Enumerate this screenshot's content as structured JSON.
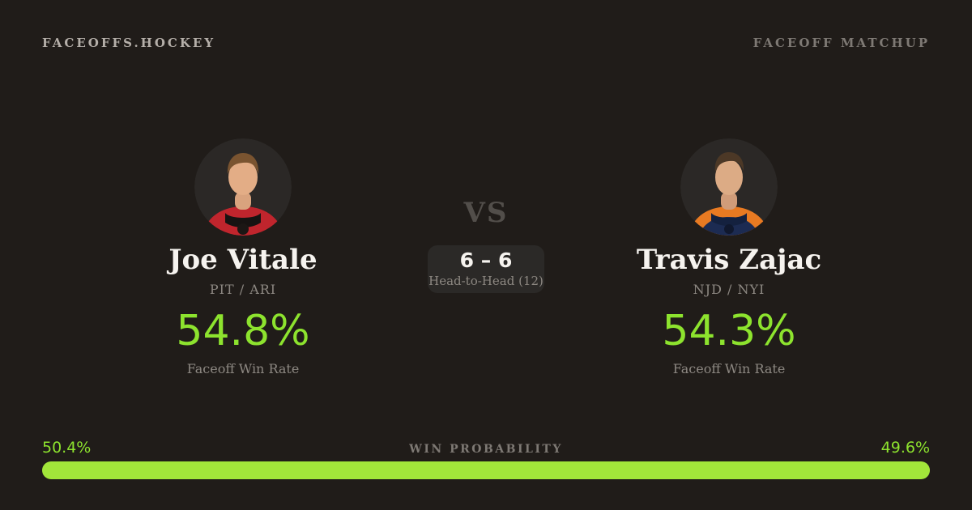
{
  "header": {
    "logo": "FACEOFFS.HOCKEY",
    "right_label": "FACEOFF MATCHUP"
  },
  "players": {
    "left": {
      "name": "Joe Vitale",
      "teams": "PIT / ARI",
      "win_rate": "54.8%",
      "win_rate_label": "Faceoff Win Rate",
      "avatar": "player-photo-red-jersey"
    },
    "right": {
      "name": "Travis Zajac",
      "teams": "NJD / NYI",
      "win_rate": "54.3%",
      "win_rate_label": "Faceoff Win Rate",
      "avatar": "player-photo-navy-orange-jersey"
    }
  },
  "center": {
    "vs": "VS",
    "head_to_head_score": "6 – 6",
    "head_to_head_label": "Head-to-Head (12)"
  },
  "probability": {
    "title": "WIN PROBABILITY",
    "left_value": "50.4%",
    "right_value": "49.6%",
    "left_pct": 50.4,
    "right_pct": 49.6
  },
  "colors": {
    "background": "#201c19",
    "avatar_bg": "#2b2826",
    "card_bg": "#2b2927",
    "accent_green": "#8de32e",
    "bar_green": "#a2e63a",
    "text_primary": "#f6f3ef",
    "text_muted": "#8d8882"
  }
}
